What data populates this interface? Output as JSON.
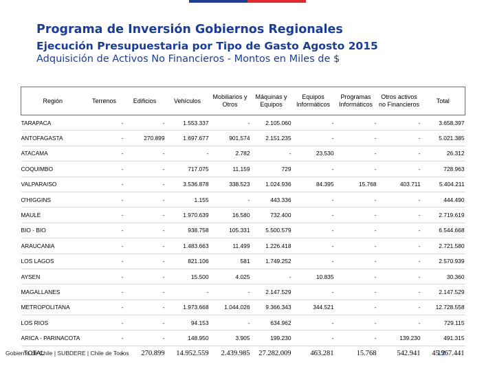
{
  "header": {
    "title": "Programa de Inversión Gobiernos Regionales",
    "subtitle": "Ejecución Presupuestaria por Tipo de Gasto Agosto 2015",
    "caption": "Adquisición de Activos No Financieros - Montos en Miles de $"
  },
  "colors": {
    "title": "#1b3d93",
    "flag_blue": "#1f3f95",
    "flag_red": "#e02b2f"
  },
  "table": {
    "columns": [
      "Región",
      "Terrenos",
      "Edificios",
      "Vehículos",
      "Mobiliarios y Otros",
      "Máquinas y Equipos",
      "Equipos Informáticos",
      "Programas Informáticos",
      "Otros activos no Financieros",
      "Total"
    ],
    "rows": [
      [
        "TARAPACA",
        "-",
        "-",
        "1.553.337",
        "-",
        "2.105.060",
        "-",
        "-",
        "-",
        "3.658.397"
      ],
      [
        "ANTOFAGASTA",
        "-",
        "270.899",
        "1.697.677",
        "901.574",
        "2.151.235",
        "-",
        "-",
        "-",
        "5.021.385"
      ],
      [
        "ATACAMA",
        "-",
        "-",
        "-",
        "2.782",
        "-",
        "23.530",
        "-",
        "-",
        "26.312"
      ],
      [
        "COQUIMBO",
        "-",
        "-",
        "717.075",
        "11.159",
        "729",
        "-",
        "-",
        "-",
        "728.963"
      ],
      [
        "VALPARAISO",
        "-",
        "-",
        "3.536.878",
        "338.523",
        "1.024.936",
        "84.395",
        "15.768",
        "403.711",
        "5.404.211"
      ],
      [
        "O'HIGGINS",
        "-",
        "-",
        "1.155",
        "-",
        "443.336",
        "-",
        "-",
        "-",
        "444.490"
      ],
      [
        "MAULE",
        "-",
        "-",
        "1.970.639",
        "16.580",
        "732.400",
        "-",
        "-",
        "-",
        "2.719.619"
      ],
      [
        "BIO - BIO",
        "-",
        "-",
        "938.758",
        "105.331",
        "5.500.579",
        "-",
        "-",
        "-",
        "6.544.668"
      ],
      [
        "ARAUCANIA",
        "-",
        "-",
        "1.483.663",
        "11.499",
        "1.226.418",
        "-",
        "-",
        "-",
        "2.721.580"
      ],
      [
        "LOS LAGOS",
        "-",
        "-",
        "821.106",
        "581",
        "1.749.252",
        "-",
        "-",
        "-",
        "2.570.939"
      ],
      [
        "AYSEN",
        "-",
        "-",
        "15.500",
        "4.025",
        "-",
        "10.835",
        "-",
        "-",
        "30.360"
      ],
      [
        "MAGALLANES",
        "-",
        "-",
        "-",
        "-",
        "2.147.529",
        "-",
        "-",
        "-",
        "2.147.529"
      ],
      [
        "METROPOLITANA",
        "-",
        "-",
        "1.973.668",
        "1.044.026",
        "9.366.343",
        "344.521",
        "-",
        "-",
        "12.728.558"
      ],
      [
        "LOS RIOS",
        "-",
        "-",
        "94.153",
        "-",
        "634.962",
        "-",
        "-",
        "-",
        "729.115"
      ],
      [
        "ARICA - PARINACOTA",
        "-",
        "-",
        "148.950",
        "3.905",
        "199.230",
        "-",
        "-",
        "139.230",
        "491.315"
      ]
    ],
    "total": [
      "TOTAL",
      "-",
      "270.899",
      "14.952.559",
      "2.439.985",
      "27.282.009",
      "463.281",
      "15.768",
      "542.941",
      "45.967.441"
    ]
  },
  "footer": {
    "source": "Gobierno de Chile | SUBDERE | Chile de Todos",
    "page_number": "12"
  }
}
